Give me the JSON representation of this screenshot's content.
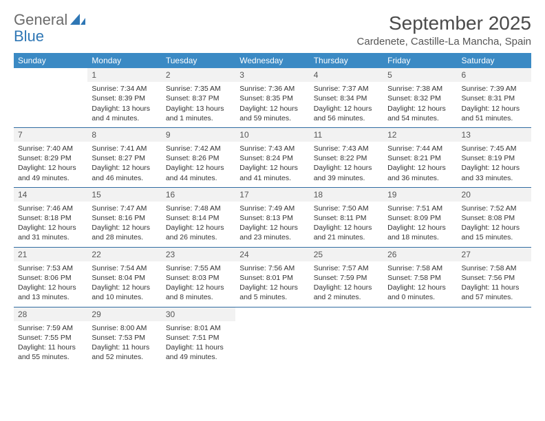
{
  "logo": {
    "text1": "General",
    "text2": "Blue"
  },
  "header": {
    "month_title": "September 2025",
    "location": "Cardenete, Castille-La Mancha, Spain"
  },
  "colors": {
    "header_bg": "#3b8ac4",
    "rule": "#2f6aa0",
    "daynum_bg": "#f2f2f2"
  },
  "weekdays": [
    "Sunday",
    "Monday",
    "Tuesday",
    "Wednesday",
    "Thursday",
    "Friday",
    "Saturday"
  ],
  "weeks": [
    [
      null,
      {
        "n": "1",
        "sr": "Sunrise: 7:34 AM",
        "ss": "Sunset: 8:39 PM",
        "dl1": "Daylight: 13 hours",
        "dl2": "and 4 minutes."
      },
      {
        "n": "2",
        "sr": "Sunrise: 7:35 AM",
        "ss": "Sunset: 8:37 PM",
        "dl1": "Daylight: 13 hours",
        "dl2": "and 1 minutes."
      },
      {
        "n": "3",
        "sr": "Sunrise: 7:36 AM",
        "ss": "Sunset: 8:35 PM",
        "dl1": "Daylight: 12 hours",
        "dl2": "and 59 minutes."
      },
      {
        "n": "4",
        "sr": "Sunrise: 7:37 AM",
        "ss": "Sunset: 8:34 PM",
        "dl1": "Daylight: 12 hours",
        "dl2": "and 56 minutes."
      },
      {
        "n": "5",
        "sr": "Sunrise: 7:38 AM",
        "ss": "Sunset: 8:32 PM",
        "dl1": "Daylight: 12 hours",
        "dl2": "and 54 minutes."
      },
      {
        "n": "6",
        "sr": "Sunrise: 7:39 AM",
        "ss": "Sunset: 8:31 PM",
        "dl1": "Daylight: 12 hours",
        "dl2": "and 51 minutes."
      }
    ],
    [
      {
        "n": "7",
        "sr": "Sunrise: 7:40 AM",
        "ss": "Sunset: 8:29 PM",
        "dl1": "Daylight: 12 hours",
        "dl2": "and 49 minutes."
      },
      {
        "n": "8",
        "sr": "Sunrise: 7:41 AM",
        "ss": "Sunset: 8:27 PM",
        "dl1": "Daylight: 12 hours",
        "dl2": "and 46 minutes."
      },
      {
        "n": "9",
        "sr": "Sunrise: 7:42 AM",
        "ss": "Sunset: 8:26 PM",
        "dl1": "Daylight: 12 hours",
        "dl2": "and 44 minutes."
      },
      {
        "n": "10",
        "sr": "Sunrise: 7:43 AM",
        "ss": "Sunset: 8:24 PM",
        "dl1": "Daylight: 12 hours",
        "dl2": "and 41 minutes."
      },
      {
        "n": "11",
        "sr": "Sunrise: 7:43 AM",
        "ss": "Sunset: 8:22 PM",
        "dl1": "Daylight: 12 hours",
        "dl2": "and 39 minutes."
      },
      {
        "n": "12",
        "sr": "Sunrise: 7:44 AM",
        "ss": "Sunset: 8:21 PM",
        "dl1": "Daylight: 12 hours",
        "dl2": "and 36 minutes."
      },
      {
        "n": "13",
        "sr": "Sunrise: 7:45 AM",
        "ss": "Sunset: 8:19 PM",
        "dl1": "Daylight: 12 hours",
        "dl2": "and 33 minutes."
      }
    ],
    [
      {
        "n": "14",
        "sr": "Sunrise: 7:46 AM",
        "ss": "Sunset: 8:18 PM",
        "dl1": "Daylight: 12 hours",
        "dl2": "and 31 minutes."
      },
      {
        "n": "15",
        "sr": "Sunrise: 7:47 AM",
        "ss": "Sunset: 8:16 PM",
        "dl1": "Daylight: 12 hours",
        "dl2": "and 28 minutes."
      },
      {
        "n": "16",
        "sr": "Sunrise: 7:48 AM",
        "ss": "Sunset: 8:14 PM",
        "dl1": "Daylight: 12 hours",
        "dl2": "and 26 minutes."
      },
      {
        "n": "17",
        "sr": "Sunrise: 7:49 AM",
        "ss": "Sunset: 8:13 PM",
        "dl1": "Daylight: 12 hours",
        "dl2": "and 23 minutes."
      },
      {
        "n": "18",
        "sr": "Sunrise: 7:50 AM",
        "ss": "Sunset: 8:11 PM",
        "dl1": "Daylight: 12 hours",
        "dl2": "and 21 minutes."
      },
      {
        "n": "19",
        "sr": "Sunrise: 7:51 AM",
        "ss": "Sunset: 8:09 PM",
        "dl1": "Daylight: 12 hours",
        "dl2": "and 18 minutes."
      },
      {
        "n": "20",
        "sr": "Sunrise: 7:52 AM",
        "ss": "Sunset: 8:08 PM",
        "dl1": "Daylight: 12 hours",
        "dl2": "and 15 minutes."
      }
    ],
    [
      {
        "n": "21",
        "sr": "Sunrise: 7:53 AM",
        "ss": "Sunset: 8:06 PM",
        "dl1": "Daylight: 12 hours",
        "dl2": "and 13 minutes."
      },
      {
        "n": "22",
        "sr": "Sunrise: 7:54 AM",
        "ss": "Sunset: 8:04 PM",
        "dl1": "Daylight: 12 hours",
        "dl2": "and 10 minutes."
      },
      {
        "n": "23",
        "sr": "Sunrise: 7:55 AM",
        "ss": "Sunset: 8:03 PM",
        "dl1": "Daylight: 12 hours",
        "dl2": "and 8 minutes."
      },
      {
        "n": "24",
        "sr": "Sunrise: 7:56 AM",
        "ss": "Sunset: 8:01 PM",
        "dl1": "Daylight: 12 hours",
        "dl2": "and 5 minutes."
      },
      {
        "n": "25",
        "sr": "Sunrise: 7:57 AM",
        "ss": "Sunset: 7:59 PM",
        "dl1": "Daylight: 12 hours",
        "dl2": "and 2 minutes."
      },
      {
        "n": "26",
        "sr": "Sunrise: 7:58 AM",
        "ss": "Sunset: 7:58 PM",
        "dl1": "Daylight: 12 hours",
        "dl2": "and 0 minutes."
      },
      {
        "n": "27",
        "sr": "Sunrise: 7:58 AM",
        "ss": "Sunset: 7:56 PM",
        "dl1": "Daylight: 11 hours",
        "dl2": "and 57 minutes."
      }
    ],
    [
      {
        "n": "28",
        "sr": "Sunrise: 7:59 AM",
        "ss": "Sunset: 7:55 PM",
        "dl1": "Daylight: 11 hours",
        "dl2": "and 55 minutes."
      },
      {
        "n": "29",
        "sr": "Sunrise: 8:00 AM",
        "ss": "Sunset: 7:53 PM",
        "dl1": "Daylight: 11 hours",
        "dl2": "and 52 minutes."
      },
      {
        "n": "30",
        "sr": "Sunrise: 8:01 AM",
        "ss": "Sunset: 7:51 PM",
        "dl1": "Daylight: 11 hours",
        "dl2": "and 49 minutes."
      },
      null,
      null,
      null,
      null
    ]
  ]
}
